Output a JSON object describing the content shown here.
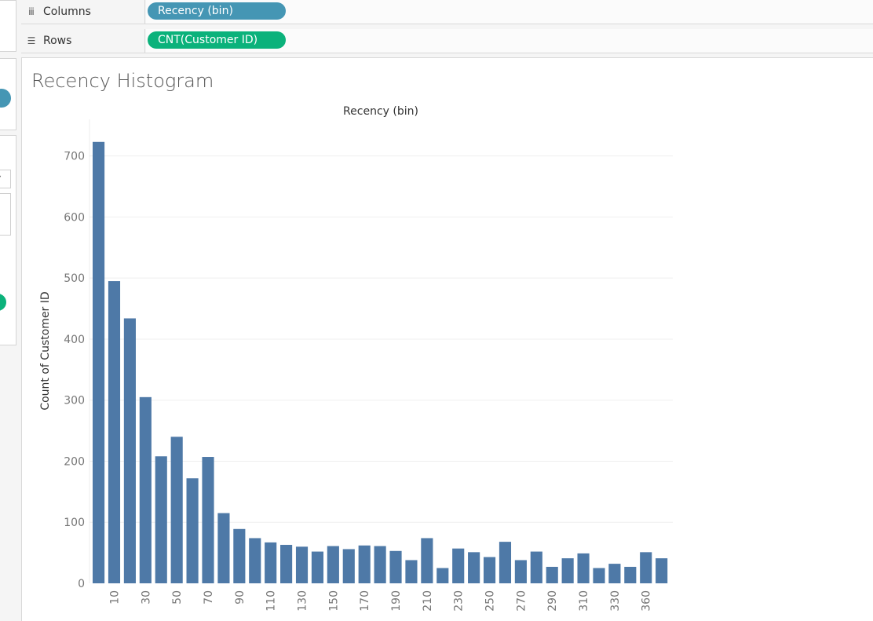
{
  "shelves": {
    "columns": {
      "label": "Columns",
      "pill": "Recency (bin)",
      "icon": "columns-icon"
    },
    "rows": {
      "label": "Rows",
      "pill": "CNT(Customer ID)",
      "icon": "rows-icon"
    }
  },
  "colors": {
    "bar": "#4e79a7",
    "pill_blue": "#4596b4",
    "pill_green": "#0bb27b",
    "grid": "#efefef"
  },
  "view": {
    "title": "Recency Histogram"
  },
  "chart_data": {
    "type": "bar",
    "title": "Recency Histogram",
    "top_label": "Recency (bin)",
    "ylabel": "Count of Customer ID",
    "ylim": [
      0,
      760
    ],
    "yticks": [
      0,
      100,
      200,
      300,
      400,
      500,
      600,
      700
    ],
    "grid": true,
    "categories": [
      "0",
      "10",
      "20",
      "30",
      "40",
      "50",
      "60",
      "70",
      "80",
      "90",
      "100",
      "110",
      "120",
      "130",
      "140",
      "150",
      "160",
      "170",
      "180",
      "190",
      "200",
      "210",
      "220",
      "230",
      "240",
      "250",
      "260",
      "270",
      "280",
      "290",
      "300",
      "310",
      "320",
      "330",
      "340",
      "360",
      "370"
    ],
    "x_tick_labels": [
      "",
      "10",
      "",
      "30",
      "",
      "50",
      "",
      "70",
      "",
      "90",
      "",
      "110",
      "",
      "130",
      "",
      "150",
      "",
      "170",
      "",
      "190",
      "",
      "210",
      "",
      "230",
      "",
      "250",
      "",
      "270",
      "",
      "290",
      "",
      "310",
      "",
      "330",
      "",
      "360",
      ""
    ],
    "values": [
      723,
      495,
      434,
      305,
      208,
      240,
      172,
      207,
      115,
      89,
      74,
      67,
      63,
      60,
      52,
      61,
      56,
      62,
      61,
      53,
      38,
      74,
      25,
      57,
      51,
      43,
      68,
      38,
      52,
      27,
      41,
      49,
      25,
      32,
      27,
      51,
      41
    ]
  }
}
